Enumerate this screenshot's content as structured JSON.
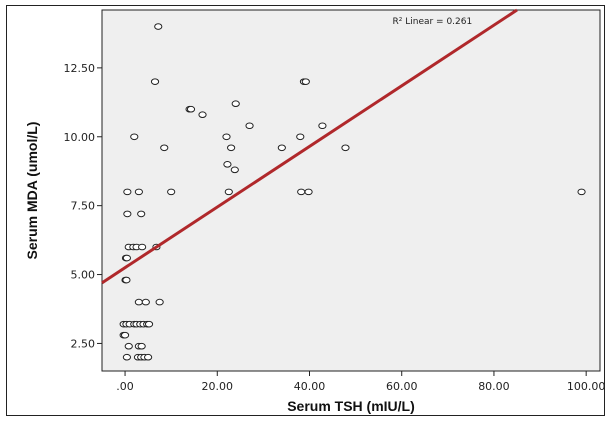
{
  "chart_data": {
    "type": "scatter",
    "title": "",
    "xlabel": "Serum TSH (mIU/L)",
    "ylabel": "Serum MDA (umol/L)",
    "xlim": [
      -5,
      103
    ],
    "ylim": [
      1.5,
      14.6
    ],
    "xticks": [
      0,
      20,
      40,
      60,
      80,
      100
    ],
    "xtick_labels": [
      ".00",
      "20.00",
      "40.00",
      "60.00",
      "80.00",
      "100.00"
    ],
    "yticks": [
      2.5,
      5,
      7.5,
      10,
      12.5
    ],
    "ytick_labels": [
      "2.50",
      "5.00",
      "7.50",
      "10.00",
      "12.50"
    ],
    "grid": false,
    "legend": "none",
    "annotation": {
      "text": "R² Linear = 0.261",
      "x": 58,
      "y": 14.1
    },
    "fit_line": {
      "type": "linear",
      "intercept": 5.25,
      "slope": 0.11,
      "color": "#b0282b"
    },
    "colors": {
      "plot_background": "#efefef",
      "point_edge": "#222222",
      "point_fill": "#ffffff",
      "frame": "#222222"
    },
    "series": [
      {
        "points": [
          [
            7.2,
            14.0
          ],
          [
            6.5,
            12.0
          ],
          [
            14.0,
            11.0
          ],
          [
            14.3,
            11.0
          ],
          [
            24.0,
            11.2
          ],
          [
            38.8,
            12.0
          ],
          [
            39.2,
            12.0
          ],
          [
            16.8,
            10.8
          ],
          [
            2.0,
            10.0
          ],
          [
            22.0,
            10.0
          ],
          [
            38.0,
            10.0
          ],
          [
            27.0,
            10.4
          ],
          [
            42.8,
            10.4
          ],
          [
            8.5,
            9.6
          ],
          [
            23.0,
            9.6
          ],
          [
            34.0,
            9.6
          ],
          [
            47.8,
            9.6
          ],
          [
            22.2,
            9.0
          ],
          [
            23.8,
            8.8
          ],
          [
            0.5,
            8.0
          ],
          [
            3.0,
            8.0
          ],
          [
            10.0,
            8.0
          ],
          [
            22.5,
            8.0
          ],
          [
            38.2,
            8.0
          ],
          [
            39.8,
            8.0
          ],
          [
            99.0,
            8.0
          ],
          [
            0.5,
            7.2
          ],
          [
            3.5,
            7.2
          ],
          [
            0.8,
            6.0
          ],
          [
            1.8,
            6.0
          ],
          [
            2.5,
            6.0
          ],
          [
            3.7,
            6.0
          ],
          [
            6.8,
            6.0
          ],
          [
            0.2,
            5.6
          ],
          [
            0.4,
            5.6
          ],
          [
            0.1,
            4.8
          ],
          [
            0.3,
            4.8
          ],
          [
            3.0,
            4.0
          ],
          [
            4.5,
            4.0
          ],
          [
            7.5,
            4.0
          ],
          [
            -0.3,
            3.2
          ],
          [
            0.3,
            3.2
          ],
          [
            1.0,
            3.2
          ],
          [
            2.0,
            3.2
          ],
          [
            2.5,
            3.2
          ],
          [
            3.3,
            3.2
          ],
          [
            4.0,
            3.2
          ],
          [
            4.8,
            3.2
          ],
          [
            5.2,
            3.2
          ],
          [
            -0.3,
            2.8
          ],
          [
            0.0,
            2.8
          ],
          [
            0.8,
            2.4
          ],
          [
            3.0,
            2.4
          ],
          [
            3.6,
            2.4
          ],
          [
            0.4,
            2.0
          ],
          [
            2.8,
            2.0
          ],
          [
            3.5,
            2.0
          ],
          [
            4.2,
            2.0
          ],
          [
            5.0,
            2.0
          ]
        ]
      }
    ]
  }
}
